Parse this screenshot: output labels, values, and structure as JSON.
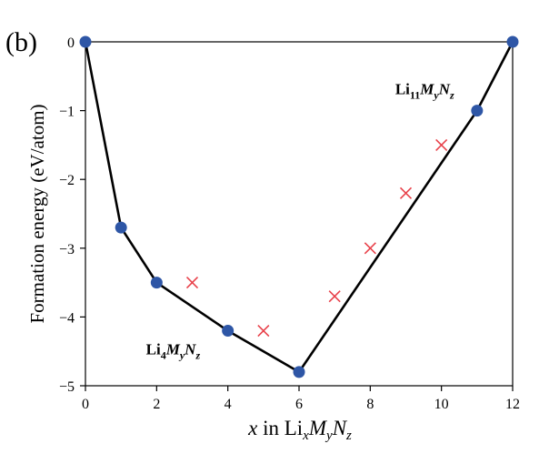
{
  "panel_label": "(b)",
  "chart_data": {
    "type": "scatter",
    "title": "",
    "xlabel": {
      "italic": "x",
      "pre": " in Li",
      "sub1": "x",
      "m": "M",
      "sub2": "y",
      "n": "N",
      "sub3": "z"
    },
    "ylabel": "Formation energy (eV/atom)",
    "xlim": [
      0,
      12
    ],
    "ylim": [
      -5,
      0
    ],
    "xticks": [
      "0",
      "2",
      "4",
      "6",
      "8",
      "10",
      "12"
    ],
    "yticks": [
      "0",
      "−1",
      "−2",
      "−3",
      "−4",
      "−5"
    ],
    "grid": false,
    "hull": {
      "x": [
        0,
        1,
        2,
        4,
        6,
        11,
        12
      ],
      "y": [
        0,
        -2.7,
        -3.5,
        -4.2,
        -4.8,
        -1.0,
        0
      ],
      "color": "#2e56a6",
      "line_color": "#000000"
    },
    "metastable": {
      "x": [
        3,
        5,
        7,
        8,
        9,
        10
      ],
      "y": [
        -3.5,
        -4.2,
        -3.7,
        -3.0,
        -2.2,
        -1.5
      ],
      "color": "#e8414a"
    },
    "annotations": [
      {
        "x": 4,
        "y": -4.2,
        "main": "Li",
        "s1": "4",
        "m": "M",
        "s2": "y",
        "n": "N",
        "s3": "z"
      },
      {
        "x": 11,
        "y": -1.0,
        "main": "Li",
        "s1": "11",
        "m": "M",
        "s2": "y",
        "n": "N",
        "s3": "z"
      }
    ]
  }
}
